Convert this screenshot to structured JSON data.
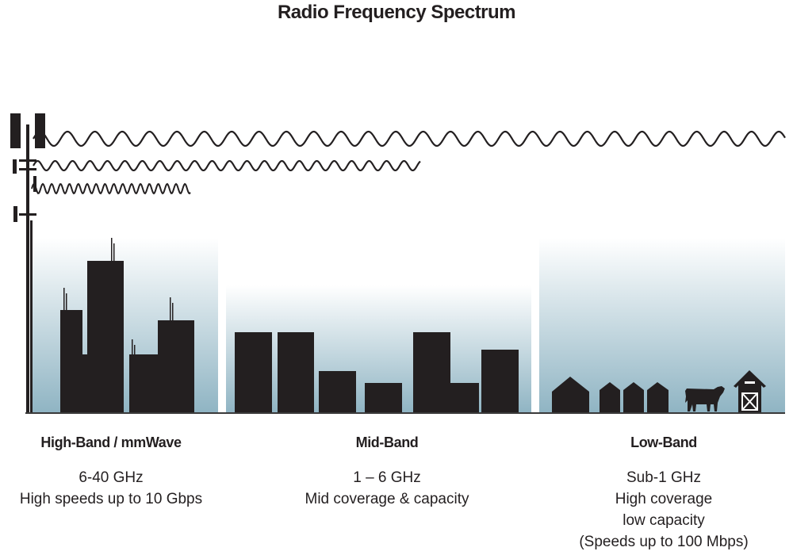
{
  "title": "Radio Frequency Spectrum",
  "colors": {
    "ink": "#231f20",
    "sky_top": "#ffffff",
    "sky_bottom": "#8fb4c3"
  },
  "bands": [
    {
      "name": "High-Band / mmWave",
      "lines": [
        "6-40 GHz",
        "High speeds up to 10 Gbps"
      ]
    },
    {
      "name": "Mid-Band",
      "lines": [
        "1 – 6 GHz",
        "Mid coverage & capacity"
      ]
    },
    {
      "name": "Low-Band",
      "lines": [
        "Sub-1 GHz",
        "High coverage",
        "low capacity",
        "(Speeds up to 100 Mbps)"
      ]
    }
  ]
}
